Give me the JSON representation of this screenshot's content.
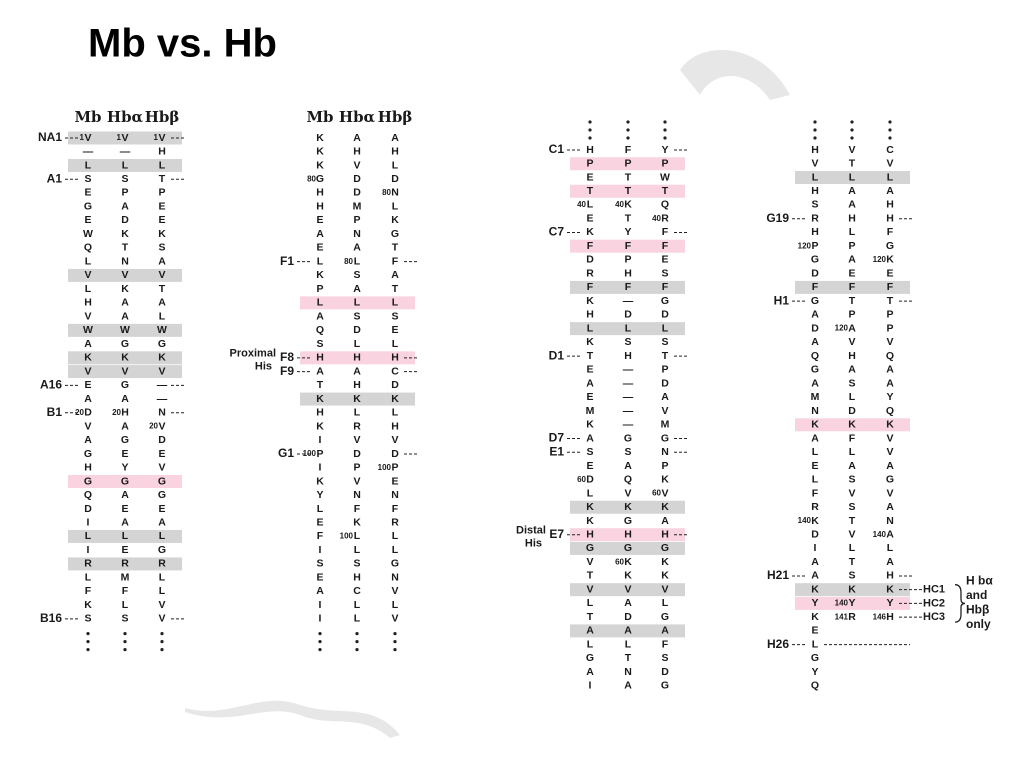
{
  "header": {
    "title": "Mb vs. Hb"
  },
  "panels": [
    {
      "columns": [
        "Mb",
        "Hbα",
        "Hbβ"
      ],
      "rows": [
        {
          "label": "NA1",
          "shade": "gray",
          "cells": [
            {
              "num": 1,
              "res": "V"
            },
            {
              "num": 1,
              "res": "V"
            },
            {
              "num": 1,
              "res": "V"
            }
          ]
        },
        {
          "cells": [
            "—",
            "—",
            "H"
          ]
        },
        {
          "shade": "gray",
          "cells": [
            "L",
            "L",
            "L"
          ]
        },
        {
          "label": "A1",
          "cells": [
            "S",
            "S",
            "T"
          ]
        },
        {
          "cells": [
            "E",
            "P",
            "P"
          ]
        },
        {
          "cells": [
            "G",
            "A",
            "E"
          ]
        },
        {
          "cells": [
            "E",
            "D",
            "E"
          ]
        },
        {
          "cells": [
            "W",
            "K",
            "K"
          ]
        },
        {
          "cells": [
            "Q",
            "T",
            "S"
          ]
        },
        {
          "cells": [
            "L",
            "N",
            "A"
          ]
        },
        {
          "shade": "gray",
          "cells": [
            "V",
            "V",
            "V"
          ]
        },
        {
          "cells": [
            "L",
            "K",
            "T"
          ]
        },
        {
          "cells": [
            "H",
            "A",
            "A"
          ]
        },
        {
          "cells": [
            "V",
            "A",
            "L"
          ]
        },
        {
          "shade": "gray",
          "cells": [
            "W",
            "W",
            "W"
          ]
        },
        {
          "cells": [
            "A",
            "G",
            "G"
          ]
        },
        {
          "shade": "gray",
          "cells": [
            "K",
            "K",
            "K"
          ]
        },
        {
          "shade": "gray",
          "cells": [
            "V",
            "V",
            "V"
          ]
        },
        {
          "label": "A16",
          "cells": [
            "E",
            "G",
            "—"
          ]
        },
        {
          "cells": [
            "A",
            "A",
            "—"
          ]
        },
        {
          "label": "B1",
          "cells": [
            {
              "num": 20,
              "res": "D"
            },
            {
              "num": 20,
              "res": "H"
            },
            "N"
          ]
        },
        {
          "cells": [
            "V",
            "A",
            {
              "num": 20,
              "res": "V"
            }
          ]
        },
        {
          "cells": [
            "A",
            "G",
            "D"
          ]
        },
        {
          "cells": [
            "G",
            "E",
            "E"
          ]
        },
        {
          "cells": [
            "H",
            "Y",
            "V"
          ]
        },
        {
          "shade": "pink",
          "cells": [
            "G",
            "G",
            "G"
          ]
        },
        {
          "cells": [
            "Q",
            "A",
            "G"
          ]
        },
        {
          "cells": [
            "D",
            "E",
            "E"
          ]
        },
        {
          "cells": [
            "I",
            "A",
            "A"
          ]
        },
        {
          "shade": "gray",
          "cells": [
            "L",
            "L",
            "L"
          ]
        },
        {
          "cells": [
            "I",
            "E",
            "G"
          ]
        },
        {
          "shade": "gray",
          "cells": [
            "R",
            "R",
            "R"
          ]
        },
        {
          "cells": [
            "L",
            "M",
            "L"
          ]
        },
        {
          "cells": [
            "F",
            "F",
            "L"
          ]
        },
        {
          "cells": [
            "K",
            "L",
            "V"
          ]
        },
        {
          "label": "B16",
          "cells": [
            "S",
            "S",
            "V"
          ]
        }
      ]
    },
    {
      "columns": [
        "Mb",
        "Hbα",
        "Hbβ"
      ],
      "rows": [
        {
          "cells": [
            "K",
            "A",
            "A"
          ]
        },
        {
          "cells": [
            "K",
            "H",
            "H"
          ]
        },
        {
          "cells": [
            "K",
            "V",
            "L"
          ]
        },
        {
          "cells": [
            {
              "num": 80,
              "res": "G"
            },
            "D",
            "D"
          ]
        },
        {
          "cells": [
            "H",
            "D",
            {
              "num": 80,
              "res": "N"
            }
          ]
        },
        {
          "cells": [
            "H",
            "M",
            "L"
          ]
        },
        {
          "cells": [
            "E",
            "P",
            "K"
          ]
        },
        {
          "cells": [
            "A",
            "N",
            "G"
          ]
        },
        {
          "cells": [
            "E",
            "A",
            "T"
          ]
        },
        {
          "label": "F1",
          "cells": [
            "L",
            {
              "num": 80,
              "res": "L"
            },
            "F"
          ]
        },
        {
          "cells": [
            "K",
            "S",
            "A"
          ]
        },
        {
          "cells": [
            "P",
            "A",
            "T"
          ]
        },
        {
          "shade": "pink",
          "cells": [
            "L",
            "L",
            "L"
          ]
        },
        {
          "cells": [
            "A",
            "S",
            "S"
          ]
        },
        {
          "cells": [
            "Q",
            "D",
            "E"
          ]
        },
        {
          "cells": [
            "S",
            "L",
            "L"
          ]
        },
        {
          "label": "F8",
          "prefix": "Proximal",
          "suffix": "His",
          "shade": "pink",
          "cells": [
            "H",
            "H",
            "H"
          ]
        },
        {
          "label": "F9",
          "cells": [
            "A",
            "A",
            "C"
          ]
        },
        {
          "cells": [
            "T",
            "H",
            "D"
          ]
        },
        {
          "shade": "gray",
          "cells": [
            "K",
            "K",
            "K"
          ]
        },
        {
          "cells": [
            "H",
            "L",
            "L"
          ]
        },
        {
          "cells": [
            "K",
            "R",
            "H"
          ]
        },
        {
          "cells": [
            "I",
            "V",
            "V"
          ]
        },
        {
          "label": "G1",
          "cells": [
            {
              "num": 100,
              "res": "P"
            },
            "D",
            "D"
          ]
        },
        {
          "cells": [
            "I",
            "P",
            {
              "num": 100,
              "res": "P"
            }
          ]
        },
        {
          "cells": [
            "K",
            "V",
            "E"
          ]
        },
        {
          "cells": [
            "Y",
            "N",
            "N"
          ]
        },
        {
          "cells": [
            "L",
            "F",
            "F"
          ]
        },
        {
          "cells": [
            "E",
            "K",
            "R"
          ]
        },
        {
          "cells": [
            "F",
            {
              "num": 100,
              "res": "L"
            },
            "L"
          ]
        },
        {
          "cells": [
            "I",
            "L",
            "L"
          ]
        },
        {
          "cells": [
            "S",
            "S",
            "G"
          ]
        },
        {
          "cells": [
            "E",
            "H",
            "N"
          ]
        },
        {
          "cells": [
            "A",
            "C",
            "V"
          ]
        },
        {
          "cells": [
            "I",
            "L",
            "L"
          ]
        },
        {
          "cells": [
            "I",
            "L",
            "V"
          ]
        }
      ]
    },
    {
      "rows": [
        {
          "label": "C1",
          "cells": [
            "H",
            "F",
            "Y"
          ]
        },
        {
          "shade": "pink",
          "cells": [
            "P",
            "P",
            "P"
          ]
        },
        {
          "cells": [
            "E",
            "T",
            "W"
          ]
        },
        {
          "shade": "pink",
          "cells": [
            "T",
            "T",
            "T"
          ]
        },
        {
          "cells": [
            {
              "num": 40,
              "res": "L"
            },
            {
              "num": 40,
              "res": "K"
            },
            "Q"
          ]
        },
        {
          "cells": [
            "E",
            "T",
            {
              "num": 40,
              "res": "R"
            }
          ]
        },
        {
          "label": "C7",
          "cells": [
            "K",
            "Y",
            "F"
          ]
        },
        {
          "shade": "pink",
          "cells": [
            "F",
            "F",
            "F"
          ]
        },
        {
          "cells": [
            "D",
            "P",
            "E"
          ]
        },
        {
          "cells": [
            "R",
            "H",
            "S"
          ]
        },
        {
          "shade": "gray",
          "cells": [
            "F",
            "F",
            "F"
          ]
        },
        {
          "cells": [
            "K",
            "—",
            "G"
          ]
        },
        {
          "cells": [
            "H",
            "D",
            "D"
          ]
        },
        {
          "shade": "gray",
          "cells": [
            "L",
            "L",
            "L"
          ]
        },
        {
          "cells": [
            "K",
            "S",
            "S"
          ]
        },
        {
          "label": "D1",
          "cells": [
            "T",
            "H",
            "T"
          ]
        },
        {
          "cells": [
            "E",
            "—",
            "P"
          ]
        },
        {
          "cells": [
            "A",
            "—",
            "D"
          ]
        },
        {
          "cells": [
            "E",
            "—",
            "A"
          ]
        },
        {
          "cells": [
            "M",
            "—",
            "V"
          ]
        },
        {
          "cells": [
            "K",
            "—",
            "M"
          ]
        },
        {
          "label": "D7",
          "cells": [
            "A",
            "G",
            "G"
          ]
        },
        {
          "label": "E1",
          "cells": [
            "S",
            "S",
            "N"
          ]
        },
        {
          "cells": [
            "E",
            "A",
            "P"
          ]
        },
        {
          "cells": [
            {
              "num": 60,
              "res": "D"
            },
            "Q",
            "K"
          ]
        },
        {
          "cells": [
            "L",
            "V",
            {
              "num": 60,
              "res": "V"
            }
          ]
        },
        {
          "shade": "gray",
          "cells": [
            "K",
            "K",
            "K"
          ]
        },
        {
          "cells": [
            "K",
            "G",
            "A"
          ]
        },
        {
          "label": "E7",
          "prefix": "Distal",
          "suffix": "His",
          "shade": "pink",
          "cells": [
            "H",
            "H",
            "H"
          ]
        },
        {
          "shade": "gray",
          "cells": [
            "G",
            "G",
            "G"
          ]
        },
        {
          "cells": [
            "V",
            {
              "num": 60,
              "res": "K"
            },
            "K"
          ]
        },
        {
          "cells": [
            "T",
            "K",
            "K"
          ]
        },
        {
          "shade": "gray",
          "cells": [
            "V",
            "V",
            "V"
          ]
        },
        {
          "cells": [
            "L",
            "A",
            "L"
          ]
        },
        {
          "cells": [
            "T",
            "D",
            "G"
          ]
        },
        {
          "shade": "gray",
          "cells": [
            "A",
            "A",
            "A"
          ]
        },
        {
          "cells": [
            "L",
            "L",
            "F"
          ]
        },
        {
          "cells": [
            "G",
            "T",
            "S"
          ]
        },
        {
          "cells": [
            "A",
            "N",
            "D"
          ]
        },
        {
          "cells": [
            "I",
            "A",
            "G"
          ]
        }
      ]
    },
    {
      "rows": [
        {
          "cells": [
            "H",
            "V",
            "C"
          ]
        },
        {
          "cells": [
            "V",
            "T",
            "V"
          ]
        },
        {
          "shade": "gray",
          "cells": [
            "L",
            "L",
            "L"
          ]
        },
        {
          "cells": [
            "H",
            "A",
            "A"
          ]
        },
        {
          "cells": [
            "S",
            "A",
            "H"
          ]
        },
        {
          "label": "G19",
          "cells": [
            "R",
            "H",
            "H"
          ]
        },
        {
          "cells": [
            "H",
            "L",
            "F"
          ]
        },
        {
          "cells": [
            {
              "num": 120,
              "res": "P"
            },
            "P",
            "G"
          ]
        },
        {
          "cells": [
            "G",
            "A",
            {
              "num": 120,
              "res": "K"
            }
          ]
        },
        {
          "cells": [
            "D",
            "E",
            "E"
          ]
        },
        {
          "shade": "gray",
          "cells": [
            "F",
            "F",
            "F"
          ]
        },
        {
          "label": "H1",
          "cells": [
            "G",
            "T",
            "T"
          ]
        },
        {
          "cells": [
            "A",
            "P",
            "P"
          ]
        },
        {
          "cells": [
            "D",
            {
              "num": 120,
              "res": "A"
            },
            "P"
          ]
        },
        {
          "cells": [
            "A",
            "V",
            "V"
          ]
        },
        {
          "cells": [
            "Q",
            "H",
            "Q"
          ]
        },
        {
          "cells": [
            "G",
            "A",
            "A"
          ]
        },
        {
          "cells": [
            "A",
            "S",
            "A"
          ]
        },
        {
          "cells": [
            "M",
            "L",
            "Y"
          ]
        },
        {
          "cells": [
            "N",
            "D",
            "Q"
          ]
        },
        {
          "shade": "pink",
          "cells": [
            "K",
            "K",
            "K"
          ]
        },
        {
          "cells": [
            "A",
            "F",
            "V"
          ]
        },
        {
          "cells": [
            "L",
            "L",
            "V"
          ]
        },
        {
          "cells": [
            "E",
            "A",
            "A"
          ]
        },
        {
          "cells": [
            "L",
            "S",
            "G"
          ]
        },
        {
          "cells": [
            "F",
            "V",
            "V"
          ]
        },
        {
          "cells": [
            "R",
            "S",
            "A"
          ]
        },
        {
          "cells": [
            {
              "num": 140,
              "res": "K"
            },
            "T",
            "N"
          ]
        },
        {
          "cells": [
            "D",
            "V",
            {
              "num": 140,
              "res": "A"
            }
          ]
        },
        {
          "cells": [
            "I",
            "L",
            "L"
          ]
        },
        {
          "cells": [
            "A",
            "T",
            "A"
          ]
        },
        {
          "label": "H21",
          "cells": [
            "A",
            "S",
            "H"
          ]
        },
        {
          "shade": "gray",
          "right_label": "HC1",
          "cells": [
            "K",
            "K",
            "K"
          ]
        },
        {
          "shade": "pink",
          "right_label": "HC2",
          "cells": [
            "Y",
            {
              "num": 140,
              "res": "Y"
            },
            "Y"
          ]
        },
        {
          "right_label": "HC3",
          "cells": [
            "K",
            {
              "num": 141,
              "res": "R"
            },
            {
              "num": 146,
              "res": "H"
            }
          ]
        },
        {
          "cells": [
            "E"
          ]
        },
        {
          "label": "H26",
          "cells": [
            "L"
          ]
        },
        {
          "cells": [
            "G"
          ]
        },
        {
          "cells": [
            "Y"
          ]
        },
        {
          "cells": [
            "Q"
          ]
        }
      ],
      "side_note": [
        "H bα",
        "and",
        "Hbβ",
        "only"
      ]
    }
  ]
}
